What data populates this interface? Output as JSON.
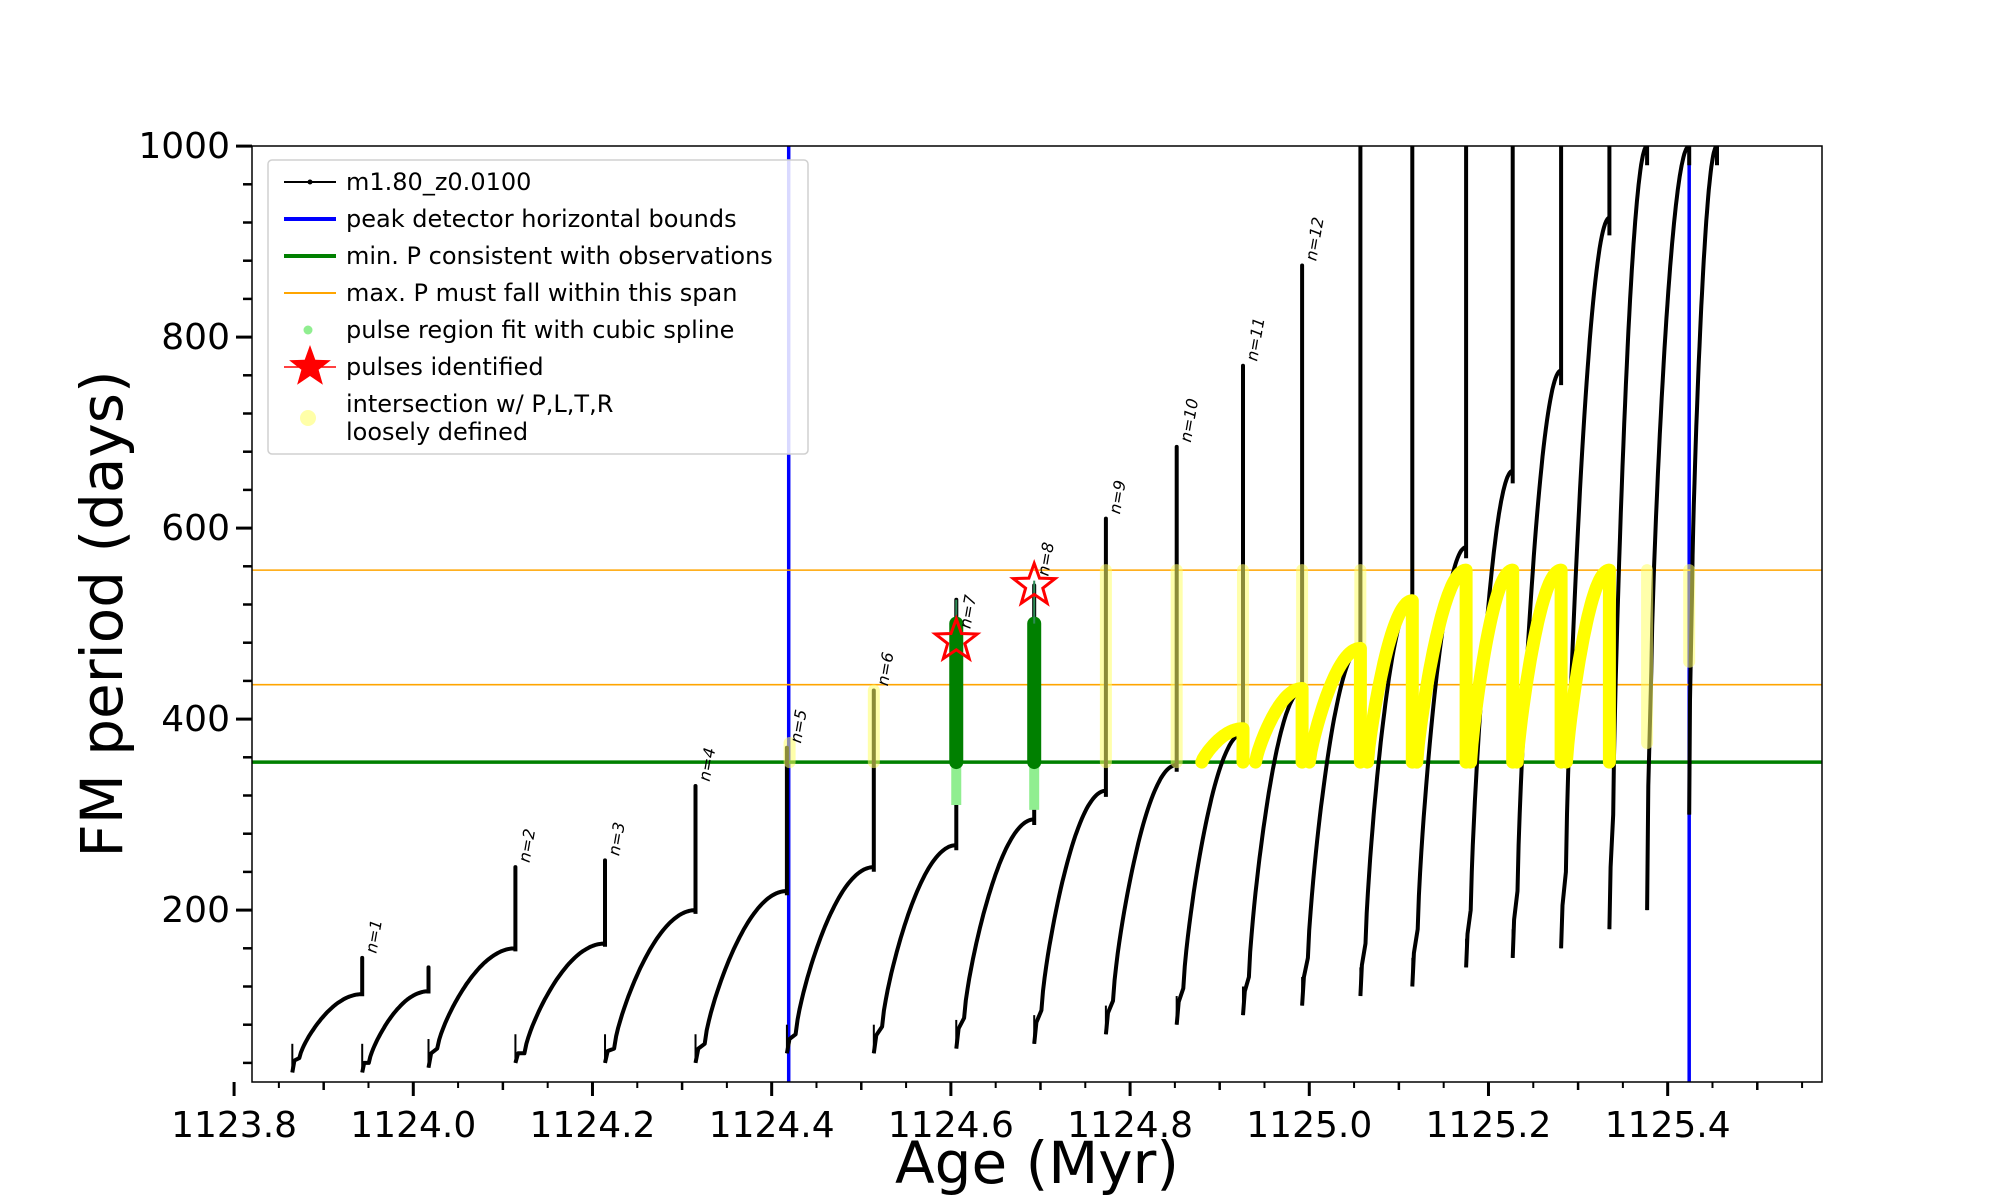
{
  "chart_data": {
    "type": "line",
    "xlabel": "Age (Myr)",
    "ylabel": "FM period (days)",
    "xlim": [
      1123.84,
      1125.55
    ],
    "ylim": [
      20,
      1000
    ],
    "x_ticks": [
      1123.8,
      1124.0,
      1124.2,
      1124.4,
      1124.6,
      1124.8,
      1125.0,
      1125.2,
      1125.4
    ],
    "x_tick_labels": [
      "1123.8",
      "1124.0",
      "1124.2",
      "1124.4",
      "1124.6",
      "1124.8",
      "1125.0",
      "1125.2",
      "1125.4"
    ],
    "y_ticks": [
      200,
      400,
      600,
      800,
      1000
    ],
    "y_tick_labels": [
      "200",
      "400",
      "600",
      "800",
      "1000"
    ],
    "grid": false,
    "legend_position": "top-left",
    "legend": [
      {
        "label": "m1.80_z0.0100",
        "kind": "line-dot",
        "color": "#000000"
      },
      {
        "label": "peak detector horizontal bounds",
        "kind": "line",
        "color": "#0000ff"
      },
      {
        "label": "min. P consistent with observations",
        "kind": "line",
        "color": "#008000"
      },
      {
        "label": "max. P must fall within this span",
        "kind": "line-thin",
        "color": "#ffa500"
      },
      {
        "label": "pulse region fit with cubic spline",
        "kind": "dot",
        "color": "#90ee90"
      },
      {
        "label": "pulses identified",
        "kind": "star",
        "color": "#ff0000"
      },
      {
        "label": "intersection w/ P,L,T,R",
        "label2": "loosely defined",
        "kind": "circle",
        "color": "#ffff99"
      }
    ],
    "vertical_lines": {
      "name": "peak detector horizontal bounds",
      "x": [
        1124.419,
        1125.424
      ],
      "color": "#0000ff"
    },
    "min_period_line": {
      "name": "min. P consistent with observations",
      "y": 355,
      "color": "#008000"
    },
    "max_period_span": {
      "name": "max. P must fall within this span",
      "y": [
        436,
        556
      ],
      "color": "#ffa500"
    },
    "series": [
      {
        "name": "m1.80_z0.0100",
        "color": "#000000",
        "segments": [
          {
            "x0": 1123.865,
            "x1": 1123.943,
            "y_start": 30,
            "y_min": 45,
            "y_peak": 112,
            "y_spike": 150
          },
          {
            "x0": 1123.943,
            "x1": 1124.017,
            "y_start": 30,
            "y_min": 40,
            "y_peak": 115,
            "y_spike": 140
          },
          {
            "x0": 1124.017,
            "x1": 1124.114,
            "y_start": 35,
            "y_min": 55,
            "y_peak": 160,
            "y_spike": 245
          },
          {
            "x0": 1124.114,
            "x1": 1124.214,
            "y_start": 40,
            "y_min": 50,
            "y_peak": 165,
            "y_spike": 252
          },
          {
            "x0": 1124.214,
            "x1": 1124.315,
            "y_start": 40,
            "y_min": 55,
            "y_peak": 200,
            "y_spike": 330
          },
          {
            "x0": 1124.315,
            "x1": 1124.417,
            "y_start": 40,
            "y_min": 60,
            "y_peak": 220,
            "y_spike": 370
          },
          {
            "x0": 1124.417,
            "x1": 1124.514,
            "y_start": 50,
            "y_min": 70,
            "y_peak": 245,
            "y_spike": 430
          },
          {
            "x0": 1124.514,
            "x1": 1124.606,
            "y_start": 50,
            "y_min": 78,
            "y_peak": 268,
            "y_spike": 525
          },
          {
            "x0": 1124.606,
            "x1": 1124.693,
            "y_start": 55,
            "y_min": 87,
            "y_peak": 295,
            "y_spike": 540
          },
          {
            "x0": 1124.693,
            "x1": 1124.773,
            "y_start": 60,
            "y_min": 95,
            "y_peak": 325,
            "y_spike": 610
          },
          {
            "x0": 1124.773,
            "x1": 1124.852,
            "y_start": 70,
            "y_min": 105,
            "y_peak": 352,
            "y_spike": 685
          },
          {
            "x0": 1124.852,
            "x1": 1124.926,
            "y_start": 80,
            "y_min": 118,
            "y_peak": 385,
            "y_spike": 770
          },
          {
            "x0": 1124.926,
            "x1": 1124.992,
            "y_start": 90,
            "y_min": 130,
            "y_peak": 430,
            "y_spike": 875
          },
          {
            "x0": 1124.992,
            "x1": 1125.057,
            "y_start": 100,
            "y_min": 150,
            "y_peak": 475,
            "y_spike": 1000
          },
          {
            "x0": 1125.057,
            "x1": 1125.115,
            "y_start": 110,
            "y_min": 165,
            "y_peak": 525,
            "y_spike": 1000
          },
          {
            "x0": 1125.115,
            "x1": 1125.175,
            "y_start": 120,
            "y_min": 180,
            "y_peak": 580,
            "y_spike": 1000
          },
          {
            "x0": 1125.175,
            "x1": 1125.227,
            "y_start": 140,
            "y_min": 200,
            "y_peak": 660,
            "y_spike": 1000
          },
          {
            "x0": 1125.227,
            "x1": 1125.281,
            "y_start": 150,
            "y_min": 220,
            "y_peak": 765,
            "y_spike": 1000
          },
          {
            "x0": 1125.281,
            "x1": 1125.335,
            "y_start": 160,
            "y_min": 240,
            "y_peak": 925,
            "y_spike": 1000
          },
          {
            "x0": 1125.335,
            "x1": 1125.377,
            "y_start": 180,
            "y_min": 300,
            "y_peak": 1000,
            "y_spike": 1000
          },
          {
            "x0": 1125.377,
            "x1": 1125.424,
            "y_start": 200,
            "y_min": 450,
            "y_peak": 1000,
            "y_spike": 1000
          },
          {
            "x0": 1125.424,
            "x1": 1125.455,
            "y_start": 300,
            "y_min": 530,
            "y_peak": 1000,
            "y_spike": 1000
          }
        ]
      }
    ],
    "pulse_labels": [
      {
        "text": "n=1",
        "x": 1123.943,
        "y": 150
      },
      {
        "text": "n=2",
        "x": 1124.114,
        "y": 245
      },
      {
        "text": "n=3",
        "x": 1124.214,
        "y": 252
      },
      {
        "text": "n=4",
        "x": 1124.315,
        "y": 330
      },
      {
        "text": "n=5",
        "x": 1124.417,
        "y": 370
      },
      {
        "text": "n=6",
        "x": 1124.514,
        "y": 430
      },
      {
        "text": "n=7",
        "x": 1124.606,
        "y": 490
      },
      {
        "text": "n=8",
        "x": 1124.693,
        "y": 545
      },
      {
        "text": "n=9",
        "x": 1124.773,
        "y": 610
      },
      {
        "text": "n=10",
        "x": 1124.852,
        "y": 685
      },
      {
        "text": "n=11",
        "x": 1124.926,
        "y": 770
      },
      {
        "text": "n=12",
        "x": 1124.992,
        "y": 875
      }
    ],
    "pulses_identified": [
      {
        "x": 1124.606,
        "y": 482
      },
      {
        "x": 1124.693,
        "y": 540
      }
    ],
    "spline_regions": [
      {
        "x": 1124.606,
        "y_range": [
          310,
          525
        ]
      },
      {
        "x": 1124.693,
        "y_range": [
          305,
          545
        ]
      }
    ],
    "intersection_vertical": [
      {
        "x": 1124.42,
        "y_range": [
          355,
          375
        ]
      },
      {
        "x": 1124.514,
        "y_range": [
          355,
          430
        ]
      },
      {
        "x": 1124.773,
        "y_range": [
          355,
          556
        ]
      },
      {
        "x": 1124.852,
        "y_range": [
          355,
          556
        ]
      },
      {
        "x": 1124.926,
        "y_range": [
          355,
          556
        ]
      },
      {
        "x": 1124.992,
        "y_range": [
          355,
          556
        ]
      },
      {
        "x": 1125.057,
        "y_range": [
          355,
          556
        ]
      },
      {
        "x": 1125.227,
        "y_range": [
          355,
          556
        ]
      },
      {
        "x": 1125.281,
        "y_range": [
          355,
          556
        ]
      },
      {
        "x": 1125.335,
        "y_range": [
          355,
          556
        ]
      },
      {
        "x": 1125.377,
        "y_range": [
          375,
          556
        ]
      },
      {
        "x": 1125.424,
        "y_range": [
          460,
          556
        ]
      }
    ],
    "intersection_arcs": [
      {
        "x0": 1124.88,
        "x1": 1124.926,
        "y_peak": 390
      },
      {
        "x0": 1124.94,
        "x1": 1124.992,
        "y_peak": 432
      },
      {
        "x0": 1125.0,
        "x1": 1125.057,
        "y_peak": 474
      },
      {
        "x0": 1125.065,
        "x1": 1125.115,
        "y_peak": 524
      },
      {
        "x0": 1125.12,
        "x1": 1125.175,
        "y_peak": 556
      },
      {
        "x0": 1125.18,
        "x1": 1125.227,
        "y_peak": 556
      },
      {
        "x0": 1125.232,
        "x1": 1125.281,
        "y_peak": 556
      },
      {
        "x0": 1125.287,
        "x1": 1125.335,
        "y_peak": 556
      }
    ]
  }
}
